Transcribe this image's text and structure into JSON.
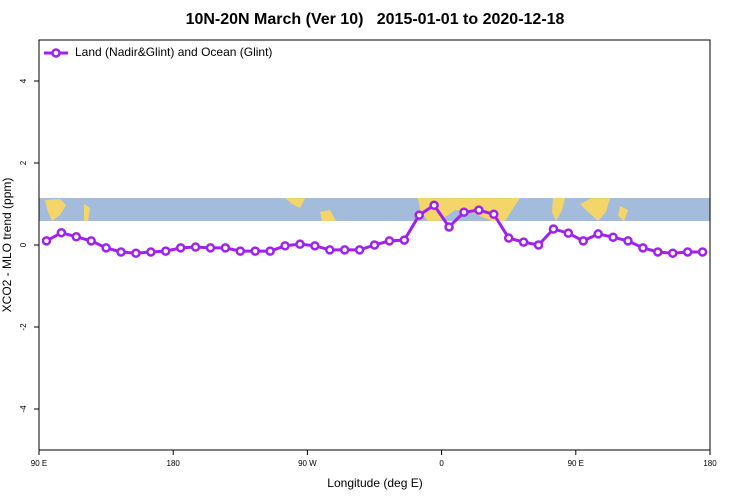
{
  "chart_data": {
    "type": "line",
    "title": "10N-20N March (Ver 10)   2015-01-01 to 2020-12-18",
    "xlabel": "Longitude (deg E)",
    "ylabel": "XCO2 - MLO trend (ppm)",
    "xlim": [
      90,
      540
    ],
    "xticks": [
      {
        "value": 90,
        "label": "90 E"
      },
      180,
      {
        "value": 270,
        "label": "90 W"
      },
      {
        "value": 360,
        "label": "0"
      },
      {
        "value": 450,
        "label": "90 E"
      },
      {
        "value": 540,
        "label": "180"
      }
    ],
    "ylim": [
      -5,
      5
    ],
    "yticks": [
      -4,
      -2,
      0,
      2,
      4
    ],
    "legend": "top-left",
    "x": [
      95,
      105,
      115,
      125,
      135,
      145,
      155,
      165,
      175,
      185,
      195,
      205,
      215,
      225,
      235,
      245,
      255,
      265,
      275,
      285,
      295,
      305,
      315,
      325,
      335,
      345,
      355,
      365,
      375,
      385,
      395,
      405,
      415,
      425,
      435,
      445,
      455,
      465,
      475,
      485,
      495,
      505,
      515,
      525,
      535
    ],
    "series": [
      {
        "name": "Land (Nadir&Glint) and Ocean (Glint)",
        "color": "#a020f0",
        "values": [
          0.1,
          0.3,
          0.2,
          0.1,
          -0.07,
          -0.17,
          -0.2,
          -0.17,
          -0.15,
          -0.07,
          -0.05,
          -0.07,
          -0.07,
          -0.15,
          -0.15,
          -0.15,
          -0.02,
          0.02,
          -0.02,
          -0.12,
          -0.12,
          -0.12,
          0,
          0.1,
          0.12,
          0.73,
          0.97,
          0.44,
          0.8,
          0.85,
          0.75,
          0.17,
          0.07,
          0,
          0.39,
          0.29,
          0.1,
          0.27,
          0.19,
          0.1,
          -0.07,
          -0.17,
          -0.2,
          -0.17,
          -0.17
        ]
      }
    ]
  }
}
